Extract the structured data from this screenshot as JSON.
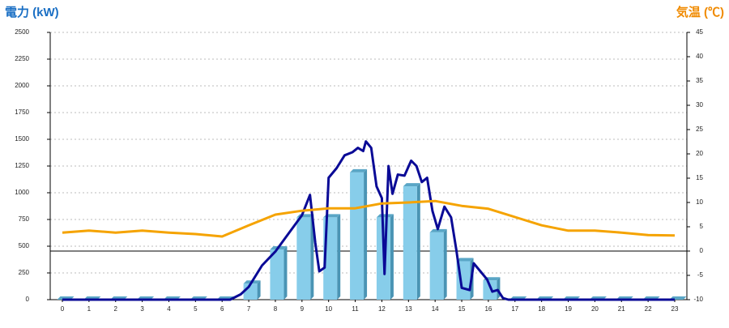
{
  "chart_data": {
    "type": "bar",
    "y_label": "電力 (kW)",
    "y2_label": "気温 (℃)",
    "categories": [
      "0",
      "1",
      "2",
      "3",
      "4",
      "5",
      "6",
      "7",
      "8",
      "9",
      "10",
      "11",
      "12",
      "13",
      "14",
      "15",
      "16",
      "17",
      "18",
      "19",
      "20",
      "21",
      "22",
      "23"
    ],
    "ylim": [
      0,
      2500
    ],
    "yticks": [
      0,
      250,
      500,
      750,
      1000,
      1250,
      1500,
      1750,
      2000,
      2250,
      2500
    ],
    "y2lim": [
      -10,
      45
    ],
    "y2ticks": [
      -10,
      -5,
      0,
      5,
      10,
      15,
      20,
      25,
      30,
      35,
      40,
      45
    ],
    "grid": true,
    "series": [
      {
        "type": "bar",
        "color": "#87cdea",
        "values": [
          0,
          0,
          0,
          0,
          0,
          0,
          0,
          150,
          470,
          770,
          770,
          1190,
          770,
          1060,
          630,
          360,
          180,
          0,
          0,
          0,
          0,
          0,
          0,
          0
        ]
      },
      {
        "type": "line",
        "color": "#0a0a96",
        "x": [
          0,
          6.3,
          6.7,
          7,
          7.5,
          8,
          8.5,
          9,
          9.3,
          9.5,
          9.65,
          9.85,
          10,
          10.3,
          10.6,
          10.9,
          11.1,
          11.3,
          11.4,
          11.6,
          11.8,
          12,
          12.1,
          12.25,
          12.4,
          12.6,
          12.85,
          13.1,
          13.3,
          13.5,
          13.7,
          13.9,
          14.1,
          14.35,
          14.6,
          14.8,
          15,
          15.3,
          15.45,
          15.7,
          15.95,
          16.15,
          16.35,
          16.55,
          16.75,
          23
        ],
        "values": [
          0,
          0,
          50,
          120,
          320,
          450,
          620,
          790,
          980,
          530,
          265,
          300,
          1140,
          1230,
          1350,
          1380,
          1420,
          1390,
          1480,
          1420,
          1060,
          950,
          240,
          1250,
          990,
          1170,
          1160,
          1300,
          1250,
          1100,
          1140,
          830,
          660,
          870,
          770,
          460,
          110,
          90,
          340,
          265,
          190,
          75,
          90,
          15,
          0,
          0
        ]
      },
      {
        "type": "line",
        "axis": "y2",
        "color": "#f5a300",
        "values": [
          3.8,
          4.2,
          3.8,
          4.2,
          3.8,
          3.5,
          3,
          5.3,
          7.5,
          8.3,
          8.8,
          8.8,
          9.8,
          10,
          10.3,
          9.3,
          8.7,
          7,
          5.3,
          4.2,
          4.2,
          3.8,
          3.3,
          3.2
        ]
      }
    ]
  }
}
